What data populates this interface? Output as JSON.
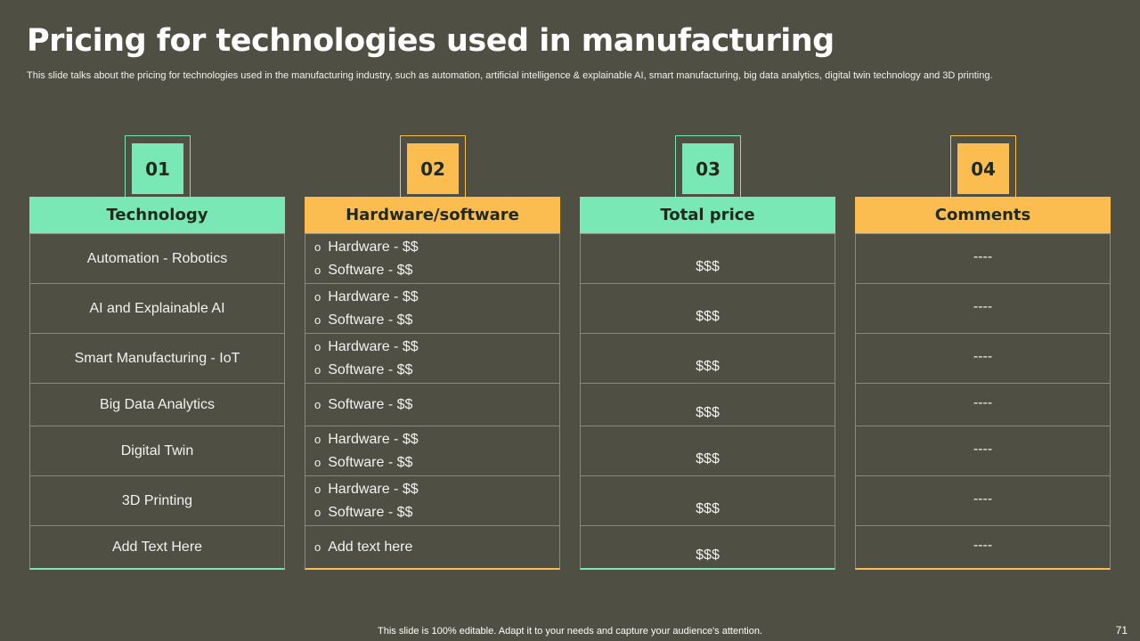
{
  "title": "Pricing for technologies used in manufacturing",
  "subtitle": "This slide talks about the pricing for technologies used in the manufacturing industry, such as automation, artificial intelligence & explainable AI, smart manufacturing, big data analytics, digital twin technology and 3D printing.",
  "colors": {
    "green": "#7ae8b4",
    "orange": "#fbbd4f",
    "background": "#4f4f43"
  },
  "columns": [
    {
      "num": "01",
      "header": "Technology",
      "color": "green",
      "rows": [
        "Automation - Robotics",
        "AI and Explainable AI",
        "Smart Manufacturing - IoT",
        "Big Data Analytics",
        "Digital Twin",
        "3D Printing",
        "Add Text Here"
      ]
    },
    {
      "num": "02",
      "header": "Hardware/software",
      "color": "orange",
      "rows": [
        [
          "Hardware - $$",
          "Software - $$"
        ],
        [
          "Hardware - $$",
          "Software - $$"
        ],
        [
          "Hardware - $$",
          "Software - $$"
        ],
        [
          "Software - $$"
        ],
        [
          "Hardware - $$",
          "Software - $$"
        ],
        [
          "Hardware - $$",
          "Software - $$"
        ],
        [
          "Add text here"
        ]
      ]
    },
    {
      "num": "03",
      "header": "Total price",
      "color": "green",
      "rows": [
        "$$$",
        "$$$",
        "$$$",
        "$$$",
        "$$$",
        "$$$",
        "$$$"
      ]
    },
    {
      "num": "04",
      "header": "Comments",
      "color": "orange",
      "rows": [
        "----",
        "----",
        "----",
        "----",
        "----",
        "----",
        "----"
      ]
    }
  ],
  "footer": "This slide is 100% editable. Adapt it to your needs and capture your audience's attention.",
  "page_number": "71"
}
